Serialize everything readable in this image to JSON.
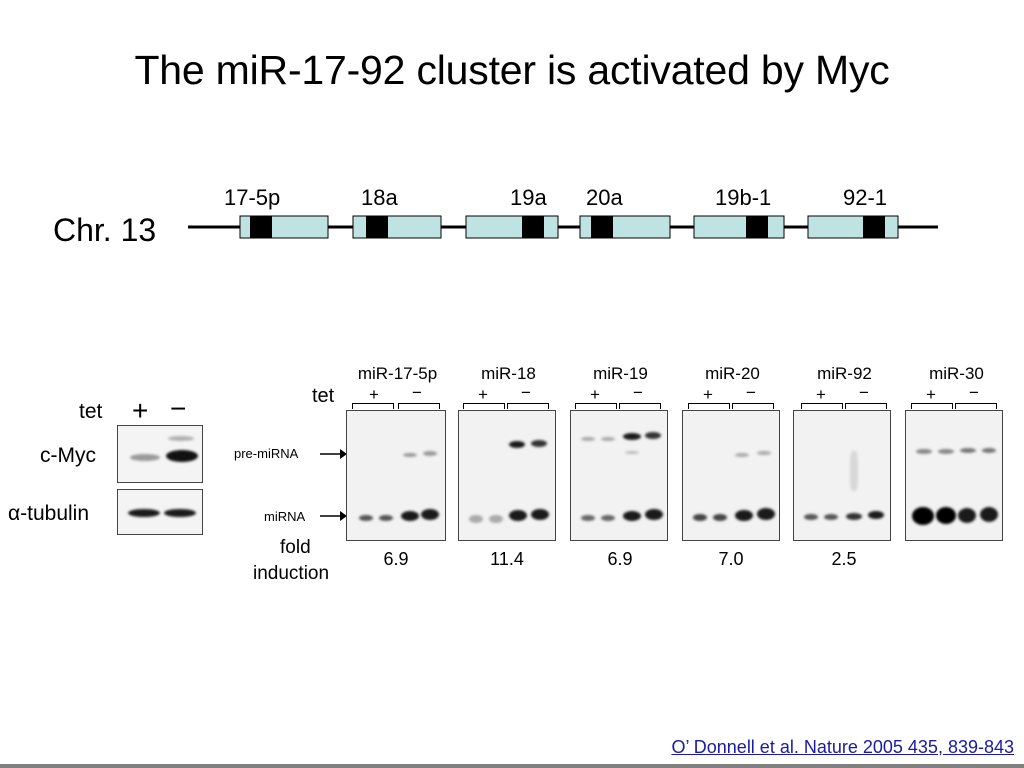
{
  "title": "The miR-17-92 cluster is activated by Myc",
  "chromosome": {
    "label": "Chr. 13",
    "mirnas": [
      "17-5p",
      "18a",
      "19a",
      "20a",
      "19b-1",
      "92-1"
    ]
  },
  "western": {
    "tet_label": "tet",
    "plus": "+",
    "minus": "−",
    "rows": [
      "c-Myc",
      "α-tubulin"
    ]
  },
  "northern": {
    "tet_label": "tet",
    "plus": "+",
    "minus": "−",
    "pre_label": "pre-miRNA",
    "mature_label": "miRNA",
    "fold_label_line1": "fold",
    "fold_label_line2": "induction",
    "panels": [
      {
        "name": "miR-17-5p",
        "fold": "6.9"
      },
      {
        "name": "miR-18",
        "fold": "11.4"
      },
      {
        "name": "miR-19",
        "fold": "6.9"
      },
      {
        "name": "miR-20",
        "fold": "7.0"
      },
      {
        "name": "miR-92",
        "fold": "2.5"
      },
      {
        "name": "miR-30",
        "fold": ""
      }
    ]
  },
  "citation": "O’ Donnell et al. Nature 2005 435, 839-843",
  "colors": {
    "box_fill": "#bfe3e3",
    "link": "#1a1aa6"
  }
}
